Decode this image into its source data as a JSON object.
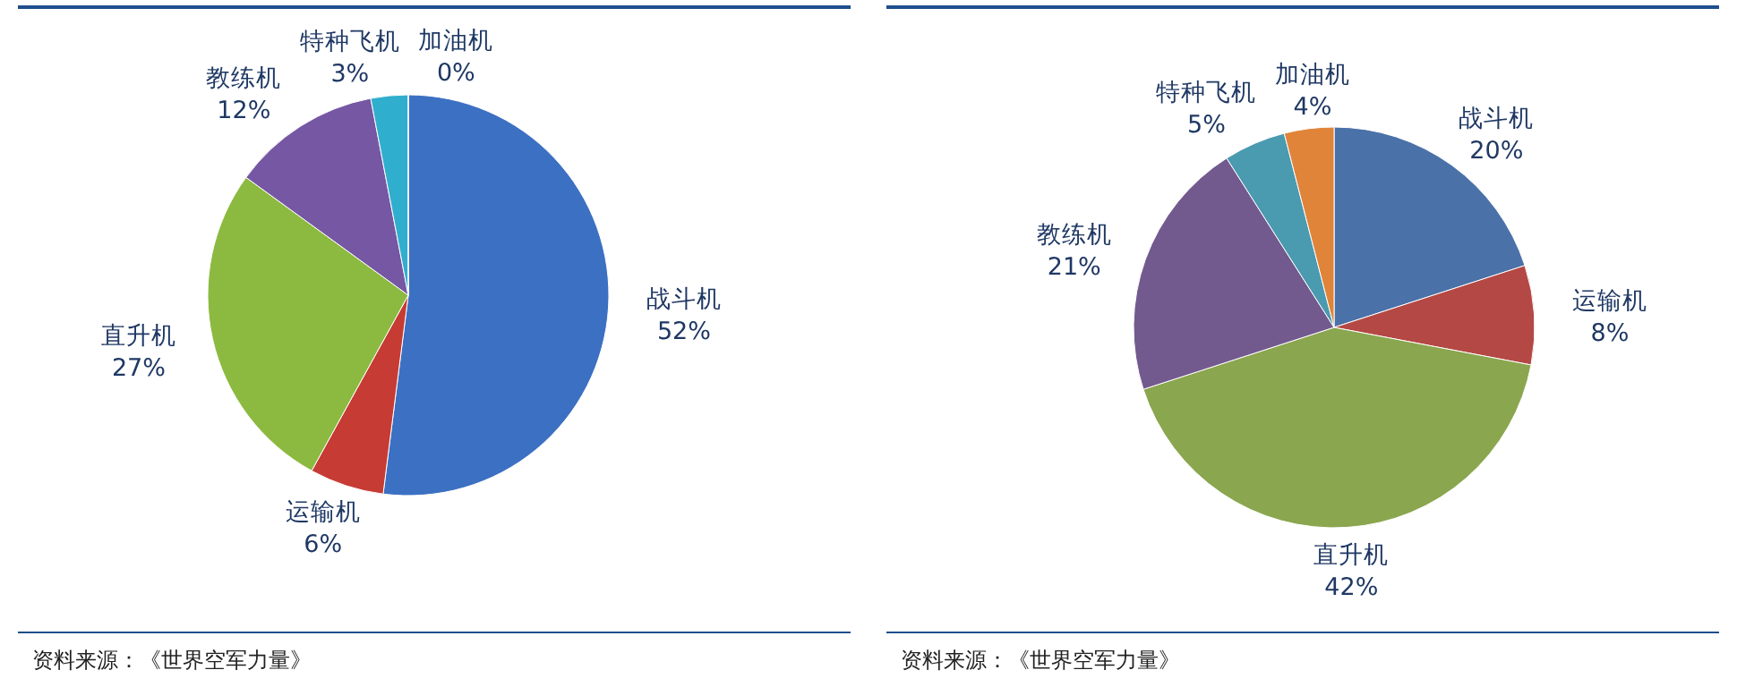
{
  "chart_data": [
    {
      "type": "pie",
      "categories": [
        "战斗机",
        "运输机",
        "直升机",
        "教练机",
        "特种飞机",
        "加油机"
      ],
      "values": [
        52,
        6,
        27,
        12,
        3,
        0
      ],
      "value_labels": [
        "52%",
        "6%",
        "27%",
        "12%",
        "3%",
        "0%"
      ],
      "colors": [
        "#3c70c2",
        "#c63b33",
        "#8cba40",
        "#7657a3",
        "#30aecd",
        "#e8842c"
      ],
      "annotations": [
        "资料来源：《世界空军力量》"
      ]
    },
    {
      "type": "pie",
      "categories": [
        "战斗机",
        "运输机",
        "直升机",
        "教练机",
        "特种飞机",
        "加油机"
      ],
      "values": [
        20,
        8,
        42,
        21,
        5,
        4
      ],
      "value_labels": [
        "20%",
        "8%",
        "42%",
        "21%",
        "5%",
        "4%"
      ],
      "colors": [
        "#4a71a8",
        "#b44844",
        "#8aa64e",
        "#735a8e",
        "#4a9ab0",
        "#e0843a"
      ],
      "annotations": [
        "资料来源：《世界空军力量》"
      ]
    }
  ]
}
